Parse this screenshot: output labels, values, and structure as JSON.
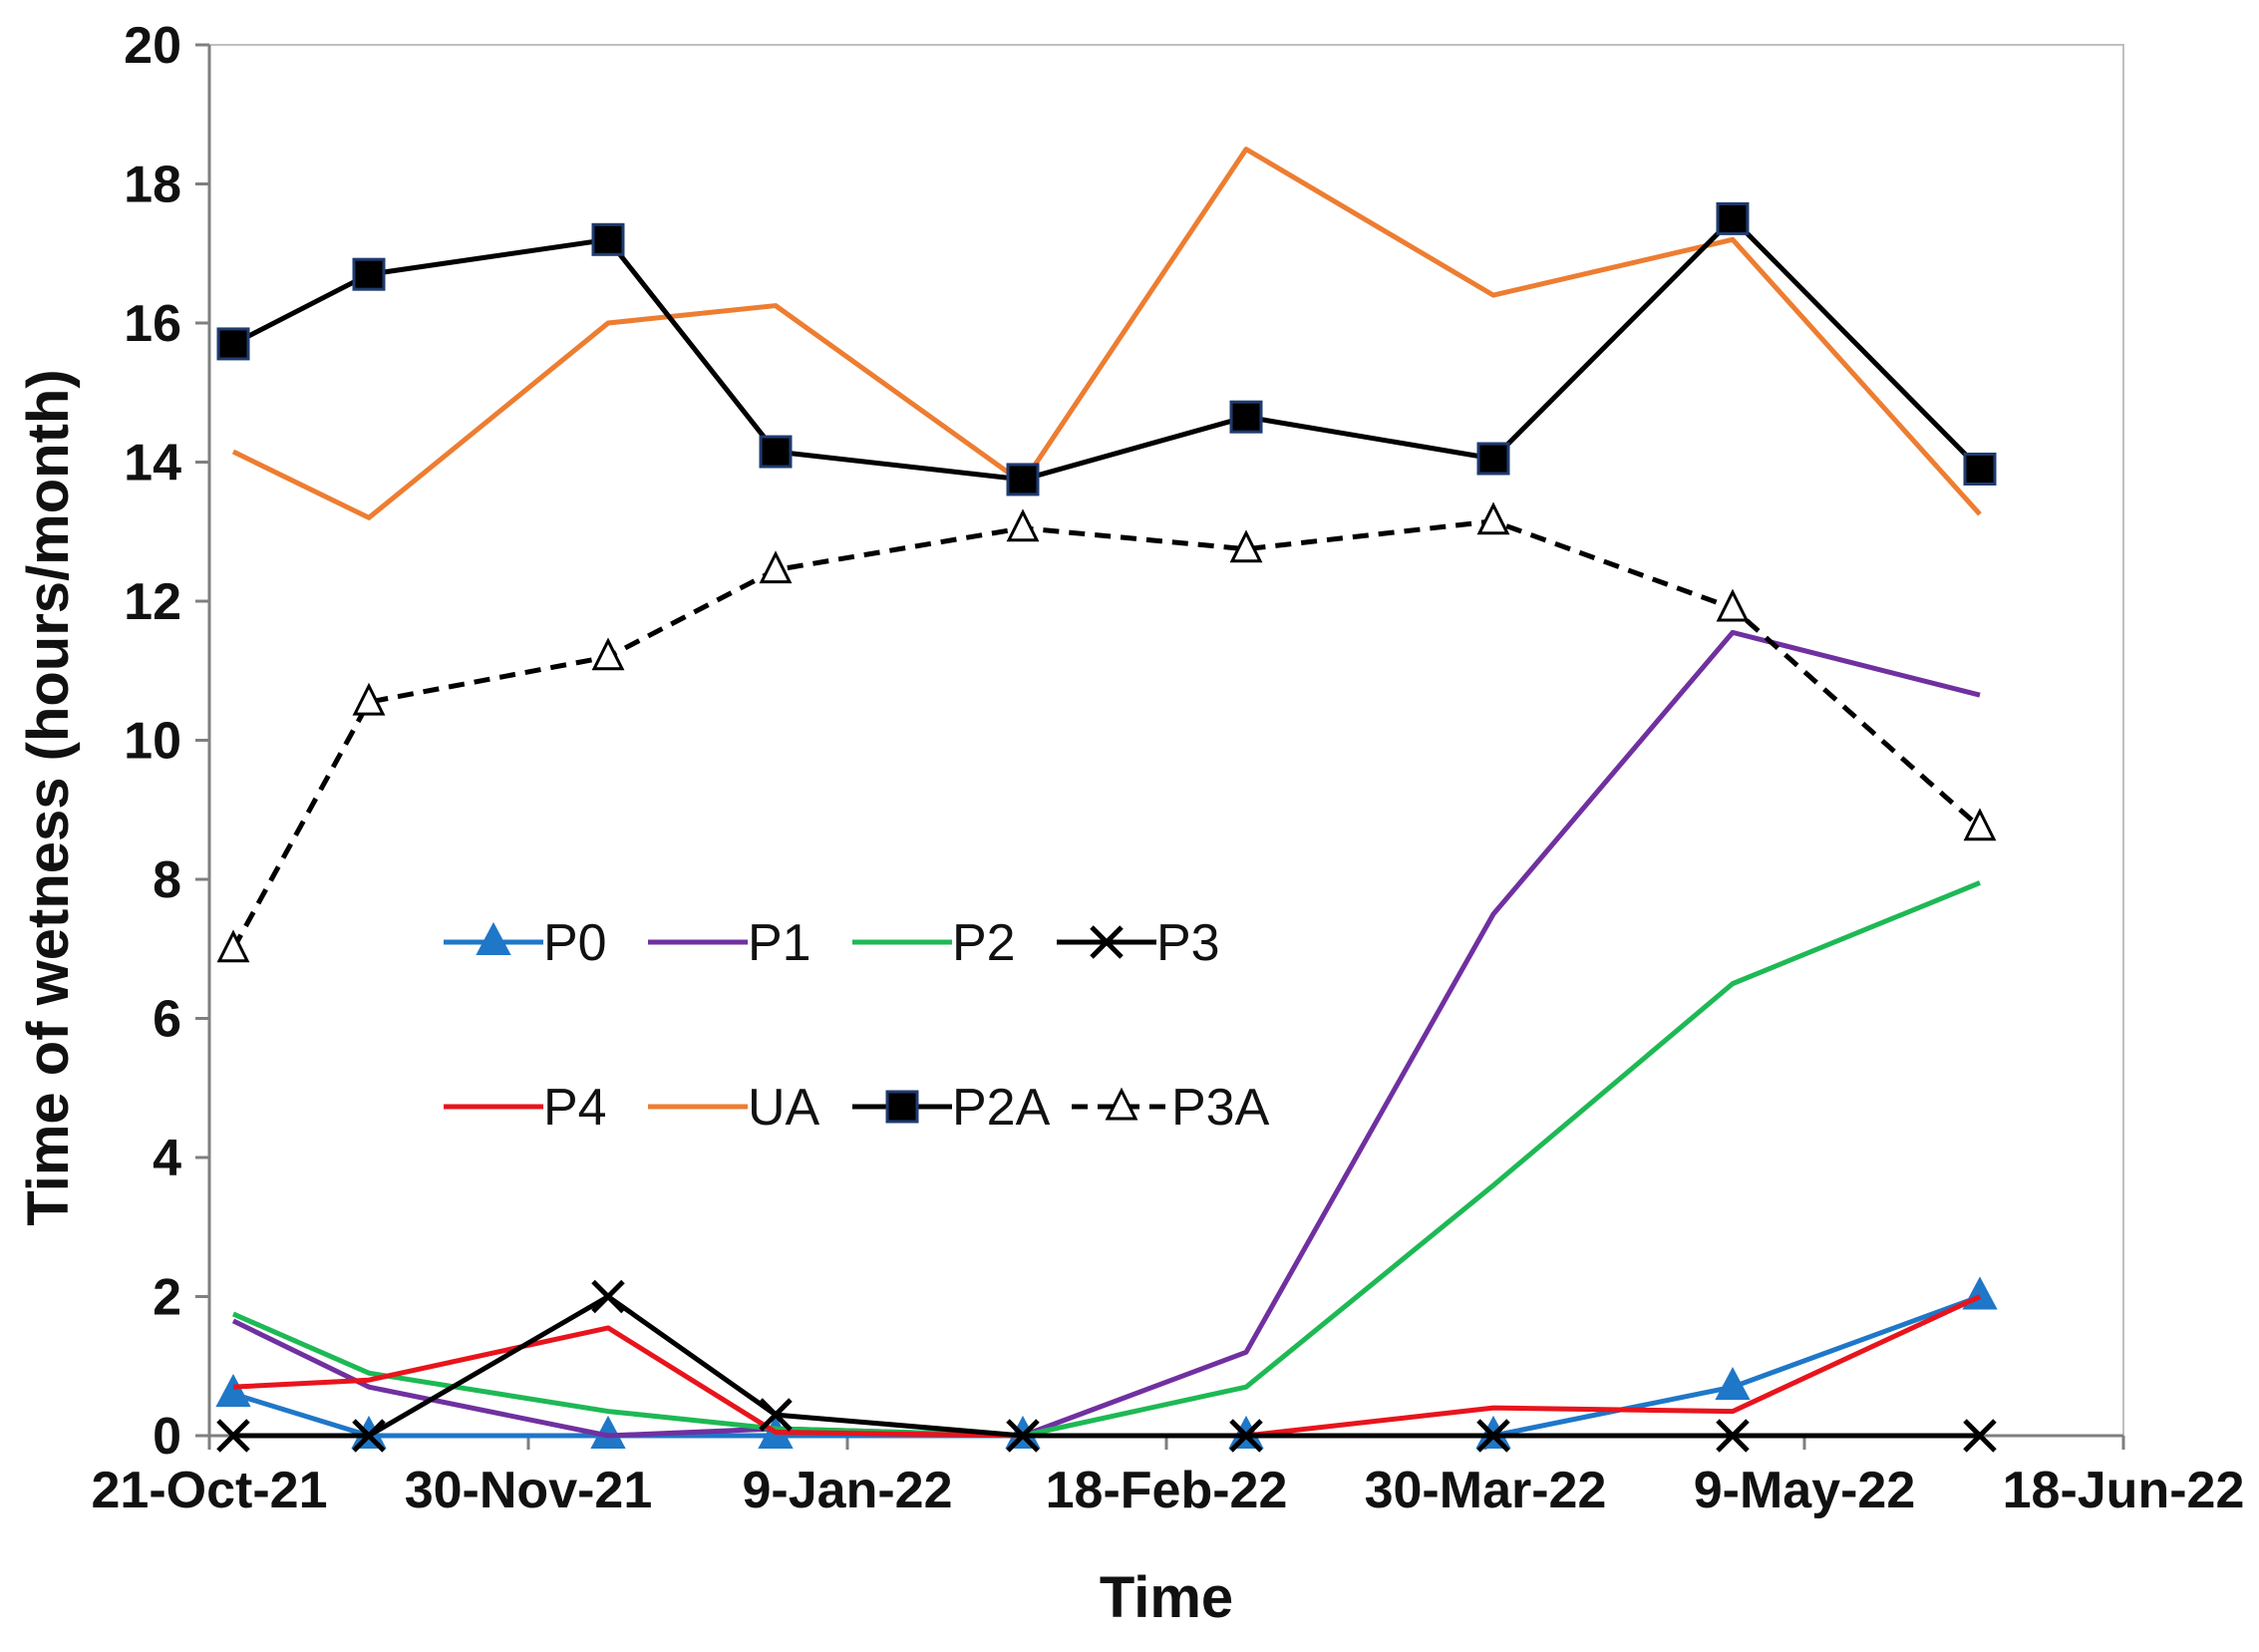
{
  "chart_data": {
    "type": "line",
    "title": "",
    "xlabel": "Time",
    "ylabel": "Time of wetness  (hours/month)",
    "ylim": [
      0,
      20
    ],
    "xlim": [
      "21-Oct-21",
      "18-Jun-22"
    ],
    "grid": false,
    "legend_position": "center-left",
    "x_tick_labels": [
      "21-Oct-21",
      "30-Nov-21",
      "9-Jan-22",
      "18-Feb-22",
      "30-Mar-22",
      "9-May-22",
      "18-Jun-22"
    ],
    "y_tick_labels": [
      "0",
      "2",
      "4",
      "6",
      "8",
      "10",
      "12",
      "14",
      "16",
      "18",
      "20"
    ],
    "x_day_offsets": [
      3,
      20,
      50,
      71,
      102,
      130,
      161,
      191,
      222
    ],
    "x_dates": [
      "24-Oct-21",
      "10-Nov-21",
      "10-Dec-21",
      "31-Dec-21",
      "31-Jan-22",
      "28-Feb-22",
      "31-Mar-22",
      "30-Apr-22",
      "31-May-22"
    ],
    "series": [
      {
        "name": "P0",
        "color": "#1f77c8",
        "marker": "triangle-filled",
        "dash": false,
        "values": [
          0.6,
          0,
          0,
          0,
          0,
          0,
          0,
          0.7,
          2.0
        ]
      },
      {
        "name": "P1",
        "color": "#7030a0",
        "marker": "none",
        "dash": false,
        "values": [
          1.65,
          0.7,
          0,
          0.1,
          0,
          1.2,
          7.5,
          11.55,
          10.65
        ]
      },
      {
        "name": "P2",
        "color": "#1db954",
        "marker": "none",
        "dash": false,
        "values": [
          1.75,
          0.9,
          0.35,
          0.1,
          0,
          0.7,
          3.6,
          6.5,
          7.95
        ]
      },
      {
        "name": "P3",
        "color": "#000000",
        "marker": "x",
        "dash": false,
        "values": [
          0,
          0,
          2.0,
          0.3,
          0,
          0,
          0,
          0,
          0
        ]
      },
      {
        "name": "P4",
        "color": "#e8141c",
        "marker": "none",
        "dash": false,
        "values": [
          0.7,
          0.8,
          1.55,
          0.05,
          0,
          0,
          0.4,
          0.35,
          2.0
        ]
      },
      {
        "name": "UA",
        "color": "#ed7d31",
        "marker": "none",
        "dash": false,
        "values": [
          14.15,
          13.2,
          16.0,
          16.25,
          13.7,
          18.5,
          16.4,
          17.2,
          13.25
        ]
      },
      {
        "name": "P2A",
        "color": "#000000",
        "marker": "square-filled",
        "dash": false,
        "values": [
          15.7,
          16.7,
          17.2,
          14.15,
          13.75,
          14.65,
          14.05,
          17.5,
          13.9
        ]
      },
      {
        "name": "P3A",
        "color": "#000000",
        "marker": "triangle-open",
        "dash": true,
        "values": [
          7.0,
          10.55,
          11.2,
          12.45,
          13.05,
          12.75,
          13.15,
          11.9,
          8.75
        ]
      }
    ]
  }
}
